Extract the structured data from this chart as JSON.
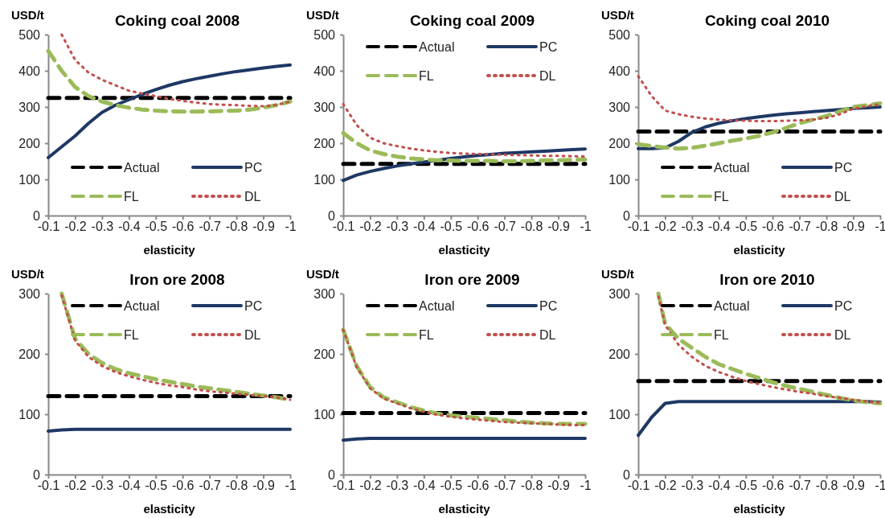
{
  "chart_data": [
    {
      "type": "line",
      "title": "Coking coal 2008",
      "xlabel": "elasticity",
      "ylabel": "USD/t",
      "x": [
        -0.1,
        -0.15,
        -0.2,
        -0.25,
        -0.3,
        -0.35,
        -0.4,
        -0.45,
        -0.5,
        -0.55,
        -0.6,
        -0.65,
        -0.7,
        -0.75,
        -0.8,
        -0.85,
        -0.9,
        -0.95,
        -1
      ],
      "xlim": [
        -0.1,
        -1
      ],
      "xticks": [
        -0.1,
        -0.2,
        -0.3,
        -0.4,
        -0.5,
        -0.6,
        -0.7,
        -0.8,
        -0.9,
        -1
      ],
      "ylim": [
        0,
        500
      ],
      "yticks": [
        0,
        100,
        200,
        300,
        400,
        500
      ],
      "grid": false,
      "legend": "bottom",
      "marker": "none",
      "series": [
        {
          "name": "Actual",
          "color": "#000000",
          "line_style": "dashed",
          "values": [
            325,
            325,
            325,
            325,
            325,
            325,
            325,
            325,
            325,
            325,
            325,
            325,
            325,
            325,
            325,
            325,
            325,
            325,
            325
          ]
        },
        {
          "name": "PC",
          "color": "#1f3864",
          "line_style": "solid",
          "values": [
            160,
            190,
            220,
            255,
            285,
            305,
            320,
            335,
            348,
            360,
            370,
            378,
            385,
            392,
            398,
            403,
            408,
            412,
            416
          ]
        },
        {
          "name": "FL",
          "color": "#9bbb59",
          "line_style": "dashed",
          "values": [
            455,
            400,
            355,
            330,
            315,
            305,
            298,
            293,
            290,
            288,
            287,
            287,
            288,
            289,
            290,
            293,
            298,
            305,
            315
          ]
        },
        {
          "name": "DL",
          "color": "#c0504d",
          "line_style": "dotted",
          "values": [
            null,
            500,
            430,
            395,
            375,
            360,
            345,
            337,
            330,
            322,
            317,
            312,
            308,
            306,
            305,
            303,
            302,
            306,
            315
          ]
        }
      ]
    },
    {
      "type": "line",
      "title": "Coking coal 2009",
      "xlabel": "elasticity",
      "ylabel": "USD/t",
      "x": [
        -0.1,
        -0.15,
        -0.2,
        -0.25,
        -0.3,
        -0.35,
        -0.4,
        -0.45,
        -0.5,
        -0.55,
        -0.6,
        -0.65,
        -0.7,
        -0.75,
        -0.8,
        -0.85,
        -0.9,
        -0.95,
        -1
      ],
      "xlim": [
        -0.1,
        -1
      ],
      "xticks": [
        -0.1,
        -0.2,
        -0.3,
        -0.4,
        -0.5,
        -0.6,
        -0.7,
        -0.8,
        -0.9,
        -1
      ],
      "ylim": [
        0,
        500
      ],
      "yticks": [
        0,
        100,
        200,
        300,
        400,
        500
      ],
      "grid": false,
      "legend": "top",
      "marker": "none",
      "series": [
        {
          "name": "Actual",
          "color": "#000000",
          "line_style": "dashed",
          "values": [
            143,
            143,
            143,
            143,
            143,
            143,
            143,
            143,
            143,
            143,
            143,
            143,
            143,
            143,
            143,
            143,
            143,
            143,
            143
          ]
        },
        {
          "name": "PC",
          "color": "#1f3864",
          "line_style": "solid",
          "values": [
            97,
            112,
            122,
            130,
            137,
            143,
            148,
            153,
            158,
            162,
            166,
            169,
            172,
            174,
            176,
            178,
            180,
            182,
            184
          ]
        },
        {
          "name": "FL",
          "color": "#9bbb59",
          "line_style": "dashed",
          "values": [
            228,
            200,
            180,
            170,
            163,
            158,
            155,
            153,
            152,
            151,
            151,
            151,
            150,
            150,
            151,
            152,
            153,
            154,
            155
          ]
        },
        {
          "name": "DL",
          "color": "#c0504d",
          "line_style": "dotted",
          "values": [
            308,
            250,
            215,
            200,
            192,
            185,
            180,
            176,
            173,
            171,
            170,
            169,
            168,
            167,
            166,
            165,
            165,
            164,
            163
          ]
        }
      ]
    },
    {
      "type": "line",
      "title": "Coking coal 2010",
      "xlabel": "elasticity",
      "ylabel": "USD/t",
      "x": [
        -0.1,
        -0.15,
        -0.2,
        -0.25,
        -0.3,
        -0.35,
        -0.4,
        -0.45,
        -0.5,
        -0.55,
        -0.6,
        -0.65,
        -0.7,
        -0.75,
        -0.8,
        -0.85,
        -0.9,
        -0.95,
        -1
      ],
      "xlim": [
        -0.1,
        -1
      ],
      "xticks": [
        -0.1,
        -0.2,
        -0.3,
        -0.4,
        -0.5,
        -0.6,
        -0.7,
        -0.8,
        -0.9,
        -1
      ],
      "ylim": [
        0,
        500
      ],
      "yticks": [
        0,
        100,
        200,
        300,
        400,
        500
      ],
      "grid": false,
      "legend": "bottom",
      "marker": "none",
      "series": [
        {
          "name": "Actual",
          "color": "#000000",
          "line_style": "dashed",
          "values": [
            232,
            232,
            232,
            232,
            232,
            232,
            232,
            232,
            232,
            232,
            232,
            232,
            232,
            232,
            232,
            232,
            232,
            232,
            232
          ]
        },
        {
          "name": "PC",
          "color": "#1f3864",
          "line_style": "solid",
          "values": [
            185,
            185,
            187,
            205,
            230,
            245,
            255,
            262,
            268,
            273,
            277,
            281,
            284,
            287,
            290,
            293,
            296,
            298,
            300
          ]
        },
        {
          "name": "FL",
          "color": "#9bbb59",
          "line_style": "dashed",
          "values": [
            197,
            192,
            188,
            185,
            187,
            193,
            200,
            207,
            213,
            220,
            230,
            242,
            255,
            265,
            275,
            288,
            300,
            305,
            310
          ]
        },
        {
          "name": "DL",
          "color": "#c0504d",
          "line_style": "dotted",
          "values": [
            385,
            330,
            290,
            280,
            273,
            268,
            265,
            263,
            262,
            261,
            261,
            262,
            263,
            265,
            270,
            280,
            295,
            302,
            308
          ]
        }
      ]
    },
    {
      "type": "line",
      "title": "Iron ore 2008",
      "xlabel": "elasticity",
      "ylabel": "USD/t",
      "x": [
        -0.1,
        -0.15,
        -0.2,
        -0.25,
        -0.3,
        -0.35,
        -0.4,
        -0.45,
        -0.5,
        -0.55,
        -0.6,
        -0.65,
        -0.7,
        -0.75,
        -0.8,
        -0.85,
        -0.9,
        -0.95,
        -1
      ],
      "xlim": [
        -0.1,
        -1
      ],
      "xticks": [
        -0.1,
        -0.2,
        -0.3,
        -0.4,
        -0.5,
        -0.6,
        -0.7,
        -0.8,
        -0.9,
        -1
      ],
      "ylim": [
        0,
        300
      ],
      "yticks": [
        0,
        100,
        200,
        300
      ],
      "grid": false,
      "legend": "top",
      "marker": "none",
      "series": [
        {
          "name": "Actual",
          "color": "#000000",
          "line_style": "dashed",
          "values": [
            130,
            130,
            130,
            130,
            130,
            130,
            130,
            130,
            130,
            130,
            130,
            130,
            130,
            130,
            130,
            130,
            130,
            130,
            130
          ]
        },
        {
          "name": "PC",
          "color": "#1f3864",
          "line_style": "solid",
          "values": [
            72,
            74,
            75,
            75,
            75,
            75,
            75,
            75,
            75,
            75,
            75,
            75,
            75,
            75,
            75,
            75,
            75,
            75,
            75
          ]
        },
        {
          "name": "FL",
          "color": "#9bbb59",
          "line_style": "dashed",
          "values": [
            null,
            300,
            225,
            200,
            185,
            175,
            168,
            163,
            158,
            154,
            150,
            146,
            143,
            140,
            137,
            134,
            131,
            128,
            124
          ]
        },
        {
          "name": "DL",
          "color": "#c0504d",
          "line_style": "dotted",
          "values": [
            null,
            297,
            222,
            195,
            180,
            170,
            163,
            157,
            152,
            148,
            145,
            141,
            138,
            136,
            134,
            132,
            130,
            128,
            124
          ]
        }
      ]
    },
    {
      "type": "line",
      "title": "Iron ore 2009",
      "xlabel": "elasticity",
      "ylabel": "USD/t",
      "x": [
        -0.1,
        -0.15,
        -0.2,
        -0.25,
        -0.3,
        -0.35,
        -0.4,
        -0.45,
        -0.5,
        -0.55,
        -0.6,
        -0.65,
        -0.7,
        -0.75,
        -0.8,
        -0.85,
        -0.9,
        -0.95,
        -1
      ],
      "xlim": [
        -0.1,
        -1
      ],
      "xticks": [
        -0.1,
        -0.2,
        -0.3,
        -0.4,
        -0.5,
        -0.6,
        -0.7,
        -0.8,
        -0.9,
        -1
      ],
      "ylim": [
        0,
        300
      ],
      "yticks": [
        0,
        100,
        200,
        300
      ],
      "grid": false,
      "legend": "top",
      "marker": "none",
      "series": [
        {
          "name": "Actual",
          "color": "#000000",
          "line_style": "dashed",
          "values": [
            102,
            102,
            102,
            102,
            102,
            102,
            102,
            102,
            102,
            102,
            102,
            102,
            102,
            102,
            102,
            102,
            102,
            102,
            102
          ]
        },
        {
          "name": "PC",
          "color": "#1f3864",
          "line_style": "solid",
          "values": [
            57,
            59,
            60,
            60,
            60,
            60,
            60,
            60,
            60,
            60,
            60,
            60,
            60,
            60,
            60,
            60,
            60,
            60,
            60
          ]
        },
        {
          "name": "FL",
          "color": "#9bbb59",
          "line_style": "dashed",
          "values": [
            240,
            180,
            145,
            128,
            120,
            112,
            106,
            101,
            98,
            96,
            94,
            92,
            90,
            88,
            86,
            85,
            84,
            84,
            84
          ]
        },
        {
          "name": "DL",
          "color": "#c0504d",
          "line_style": "dotted",
          "values": [
            240,
            178,
            143,
            126,
            118,
            110,
            104,
            99,
            96,
            93,
            91,
            89,
            87,
            86,
            85,
            84,
            83,
            82,
            82
          ]
        }
      ]
    },
    {
      "type": "line",
      "title": "Iron ore 2010",
      "xlabel": "elasticity",
      "ylabel": "USD/t",
      "x": [
        -0.1,
        -0.15,
        -0.2,
        -0.25,
        -0.3,
        -0.35,
        -0.4,
        -0.45,
        -0.5,
        -0.55,
        -0.6,
        -0.65,
        -0.7,
        -0.75,
        -0.8,
        -0.85,
        -0.9,
        -0.95,
        -1
      ],
      "xlim": [
        -0.1,
        -1
      ],
      "xticks": [
        -0.1,
        -0.2,
        -0.3,
        -0.4,
        -0.5,
        -0.6,
        -0.7,
        -0.8,
        -0.9,
        -1
      ],
      "ylim": [
        0,
        300
      ],
      "yticks": [
        0,
        100,
        200,
        300
      ],
      "grid": false,
      "legend": "top",
      "marker": "none",
      "series": [
        {
          "name": "Actual",
          "color": "#000000",
          "line_style": "dashed",
          "values": [
            155,
            155,
            155,
            155,
            155,
            155,
            155,
            155,
            155,
            155,
            155,
            155,
            155,
            155,
            155,
            155,
            155,
            155,
            155
          ]
        },
        {
          "name": "PC",
          "color": "#1f3864",
          "line_style": "solid",
          "values": [
            65,
            95,
            118,
            121,
            121,
            121,
            121,
            121,
            121,
            121,
            121,
            121,
            121,
            121,
            121,
            121,
            121,
            121,
            120
          ]
        },
        {
          "name": "FL",
          "color": "#9bbb59",
          "line_style": "dashed",
          "x": [
            -0.175,
            -0.2,
            -0.25,
            -0.3,
            -0.35,
            -0.4,
            -0.45,
            -0.5,
            -0.55,
            -0.6,
            -0.65,
            -0.7,
            -0.75,
            -0.8,
            -0.85,
            -0.9,
            -0.95,
            -1
          ],
          "values": [
            300,
            250,
            225,
            210,
            195,
            183,
            175,
            167,
            160,
            153,
            147,
            142,
            137,
            132,
            127,
            123,
            120,
            118
          ]
        },
        {
          "name": "DL",
          "color": "#c0504d",
          "line_style": "dotted",
          "x": [
            -0.175,
            -0.2,
            -0.25,
            -0.3,
            -0.35,
            -0.4,
            -0.45,
            -0.5,
            -0.55,
            -0.6,
            -0.65,
            -0.7,
            -0.75,
            -0.8,
            -0.85,
            -0.9,
            -0.95,
            -1
          ],
          "values": [
            295,
            248,
            215,
            195,
            180,
            170,
            162,
            155,
            150,
            145,
            141,
            137,
            134,
            130,
            127,
            124,
            121,
            119
          ]
        }
      ]
    }
  ]
}
